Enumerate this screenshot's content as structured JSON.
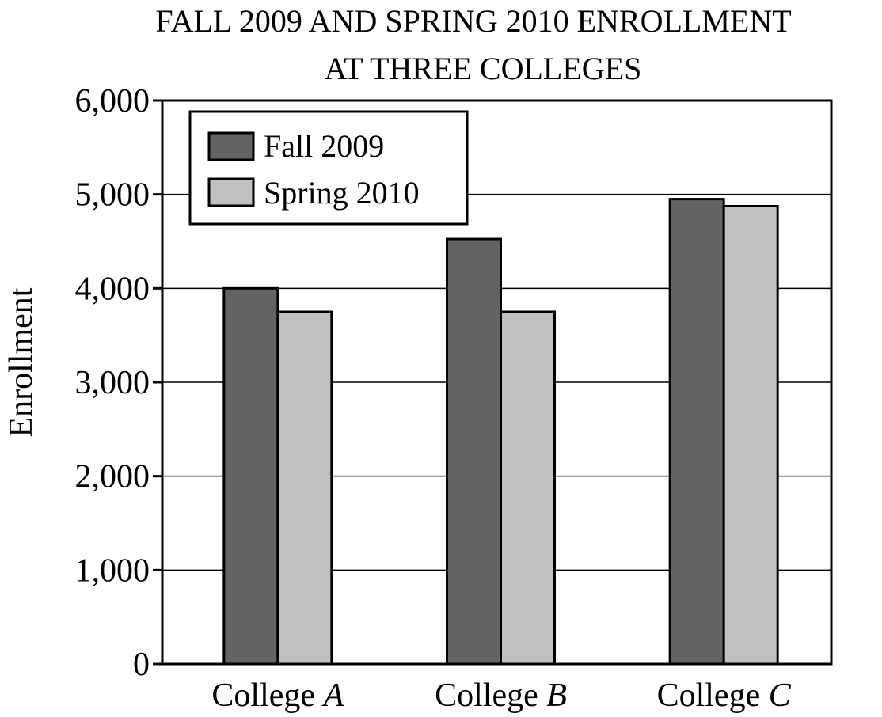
{
  "chart_data": {
    "type": "bar",
    "title_lines": [
      "FALL 2009 AND SPRING 2010 ENROLLMENT",
      "AT THREE COLLEGES"
    ],
    "xlabel": "",
    "ylabel": "Enrollment",
    "ylim": [
      0,
      6000
    ],
    "yticks": [
      0,
      1000,
      2000,
      3000,
      4000,
      5000,
      6000
    ],
    "ytick_labels": [
      "0",
      "1,000",
      "2,000",
      "3,000",
      "4,000",
      "5,000",
      "6,000"
    ],
    "grid": true,
    "legend_position": "top-left",
    "categories": [
      {
        "prefix": "College ",
        "letter": "A"
      },
      {
        "prefix": "College ",
        "letter": "B"
      },
      {
        "prefix": "College ",
        "letter": "C"
      }
    ],
    "series": [
      {
        "name": "Fall 2009",
        "color": "#636363",
        "values": [
          4000,
          4525,
          4950
        ]
      },
      {
        "name": "Spring 2010",
        "color": "#c0c0c0",
        "values": [
          3750,
          3750,
          4875
        ]
      }
    ]
  }
}
